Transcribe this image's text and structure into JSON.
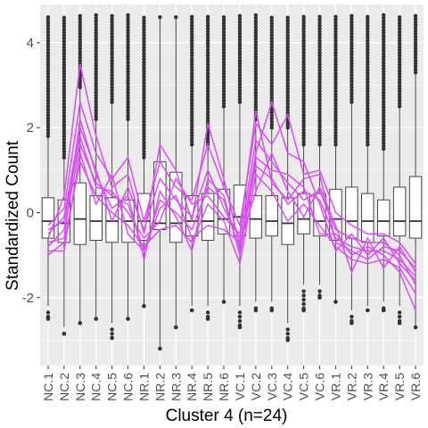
{
  "chart_data": {
    "type": "boxplot-with-lines",
    "xlabel": "Cluster 4 (n=24)",
    "ylabel": "Standardized Count",
    "ylim": [
      -3.6,
      4.9
    ],
    "yticks": [
      -2,
      0,
      2,
      4
    ],
    "grid": true,
    "colors": {
      "panel": "#ebebeb",
      "grid_major": "#ffffff",
      "box_outline": "#333333",
      "outlier": "#333333",
      "lines": "#d84ef0"
    },
    "categories": [
      "NC.1",
      "NC.2",
      "NC.3",
      "NC.4",
      "NC.5",
      "NC.6",
      "NR.1",
      "NR.2",
      "NR.3",
      "NR.4",
      "NR.5",
      "NR.6",
      "VC.1",
      "VC.2",
      "VC.3",
      "VC.4",
      "VC.5",
      "VC.6",
      "VR.1",
      "VR.2",
      "VR.3",
      "VR.4",
      "VR.5",
      "VR.6"
    ],
    "boxes": [
      {
        "q1": -0.6,
        "median": -0.2,
        "q3": 0.35,
        "whisker_low": -2.2,
        "whisker_high": 1.8,
        "outlier_top": 4.65,
        "outlier_low": -2.5
      },
      {
        "q1": -0.7,
        "median": -0.25,
        "q3": 0.3,
        "whisker_low": -2.7,
        "whisker_high": 1.3,
        "outlier_top": 4.65,
        "outlier_low": -2.85
      },
      {
        "q1": -0.75,
        "median": -0.15,
        "q3": 0.7,
        "whisker_low": -2.6,
        "whisker_high": 2.95,
        "outlier_top": 4.65,
        "outlier_low": -2.6
      },
      {
        "q1": -0.65,
        "median": -0.2,
        "q3": 0.4,
        "whisker_low": -2.45,
        "whisker_high": 2.2,
        "outlier_top": 4.65,
        "outlier_low": -2.5
      },
      {
        "q1": -0.7,
        "median": -0.2,
        "q3": 0.35,
        "whisker_low": -2.6,
        "whisker_high": 2.6,
        "outlier_top": 4.65,
        "outlier_low": -2.95
      },
      {
        "q1": -0.7,
        "median": -0.2,
        "q3": 0.3,
        "whisker_low": -2.45,
        "whisker_high": 2.2,
        "outlier_top": 4.65,
        "outlier_low": -2.5
      },
      {
        "q1": -0.65,
        "median": -0.2,
        "q3": 0.45,
        "whisker_low": -2.2,
        "whisker_high": 1.3,
        "outlier_top": 4.65,
        "outlier_low": -2.2
      },
      {
        "q1": -0.4,
        "median": -0.25,
        "q3": 1.2,
        "whisker_low": -3.2,
        "whisker_high": 4.6,
        "outlier_top": 4.65,
        "outlier_low": -3.2
      },
      {
        "q1": -0.7,
        "median": -0.25,
        "q3": 0.95,
        "whisker_low": -2.7,
        "whisker_high": 4.6,
        "outlier_top": 4.65,
        "outlier_low": -2.7
      },
      {
        "q1": -0.55,
        "median": -0.2,
        "q3": 0.4,
        "whisker_low": -2.2,
        "whisker_high": 1.6,
        "outlier_top": 4.65,
        "outlier_low": -2.3
      },
      {
        "q1": -0.65,
        "median": -0.2,
        "q3": 0.45,
        "whisker_low": -2.2,
        "whisker_high": 1.6,
        "outlier_top": 4.65,
        "outlier_low": -2.5
      },
      {
        "q1": -0.5,
        "median": -0.15,
        "q3": 0.55,
        "whisker_low": -2.1,
        "whisker_high": 2.5,
        "outlier_top": 4.65,
        "outlier_low": -2.1
      },
      {
        "q1": -0.55,
        "median": -0.1,
        "q3": 0.65,
        "whisker_low": -2.2,
        "whisker_high": 2.6,
        "outlier_top": 4.65,
        "outlier_low": -2.7
      },
      {
        "q1": -0.6,
        "median": -0.15,
        "q3": 0.4,
        "whisker_low": -2.1,
        "whisker_high": 2.2,
        "outlier_top": 4.65,
        "outlier_low": -2.3
      },
      {
        "q1": -0.55,
        "median": -0.2,
        "q3": 0.4,
        "whisker_low": -2.1,
        "whisker_high": 2.0,
        "outlier_top": 4.65,
        "outlier_low": -2.3
      },
      {
        "q1": -0.75,
        "median": -0.25,
        "q3": 0.35,
        "whisker_low": -2.6,
        "whisker_high": 2.0,
        "outlier_top": 4.65,
        "outlier_low": -3.0
      },
      {
        "q1": -0.5,
        "median": -0.15,
        "q3": 0.45,
        "whisker_low": -1.7,
        "whisker_high": 1.6,
        "outlier_top": 4.65,
        "outlier_low": -2.3
      },
      {
        "q1": -0.55,
        "median": -0.2,
        "q3": 0.45,
        "whisker_low": -1.7,
        "whisker_high": 1.6,
        "outlier_top": 4.65,
        "outlier_low": -2.0
      },
      {
        "q1": -0.65,
        "median": -0.15,
        "q3": 0.55,
        "whisker_low": -2.1,
        "whisker_high": 1.6,
        "outlier_top": 4.65,
        "outlier_low": -2.1
      },
      {
        "q1": -0.6,
        "median": -0.2,
        "q3": 0.6,
        "whisker_low": -2.3,
        "whisker_high": 2.6,
        "outlier_top": 4.65,
        "outlier_low": -2.6
      },
      {
        "q1": -0.7,
        "median": -0.2,
        "q3": 0.45,
        "whisker_low": -2.2,
        "whisker_high": 1.6,
        "outlier_top": 4.65,
        "outlier_low": -2.3
      },
      {
        "q1": -0.55,
        "median": -0.2,
        "q3": 0.3,
        "whisker_low": -2.1,
        "whisker_high": 1.5,
        "outlier_top": 4.65,
        "outlier_low": -2.3
      },
      {
        "q1": -0.55,
        "median": -0.2,
        "q3": 0.6,
        "whisker_low": -2.2,
        "whisker_high": 2.5,
        "outlier_top": 4.65,
        "outlier_low": -2.6
      },
      {
        "q1": -0.6,
        "median": -0.2,
        "q3": 0.85,
        "whisker_low": -2.7,
        "whisker_high": 3.3,
        "outlier_top": 4.65,
        "outlier_low": -2.7
      }
    ],
    "lines": [
      [
        -0.8,
        -0.4,
        1.6,
        0.7,
        0.4,
        0.2,
        -0.9,
        0.3,
        0.0,
        -0.4,
        0.6,
        0.3,
        -0.9,
        1.1,
        0.8,
        0.2,
        0.5,
        0.3,
        -0.6,
        -0.8,
        -0.9,
        -0.9,
        -1.1,
        -1.5
      ],
      [
        -0.5,
        -0.1,
        2.0,
        1.0,
        -0.2,
        0.6,
        -0.4,
        0.8,
        0.3,
        -0.1,
        1.0,
        0.1,
        -0.6,
        1.7,
        1.2,
        0.7,
        0.3,
        0.5,
        -0.4,
        -0.6,
        -0.7,
        -0.7,
        -1.0,
        -1.7
      ],
      [
        -1.0,
        -0.7,
        1.2,
        0.4,
        0.0,
        -0.3,
        -0.8,
        -0.4,
        -0.3,
        -0.7,
        0.2,
        -0.2,
        -1.2,
        0.9,
        0.5,
        -0.2,
        0.2,
        -0.3,
        -0.8,
        -1.1,
        -1.2,
        -1.1,
        -1.3,
        -1.9
      ],
      [
        -0.3,
        0.1,
        2.6,
        1.4,
        0.8,
        1.3,
        -0.2,
        1.2,
        0.6,
        0.3,
        1.6,
        0.6,
        -0.3,
        2.1,
        1.6,
        2.3,
        0.9,
        1.0,
        0.0,
        -0.3,
        -0.5,
        -0.5,
        -0.7,
        -1.2
      ],
      [
        -0.9,
        -0.9,
        1.4,
        0.2,
        0.9,
        -0.5,
        -0.9,
        0.1,
        0.4,
        -0.6,
        -0.3,
        -0.4,
        -0.7,
        0.5,
        1.4,
        0.5,
        -0.1,
        0.6,
        -0.3,
        -1.4,
        -0.6,
        -1.3,
        -0.8,
        -1.4
      ],
      [
        -0.6,
        0.4,
        3.5,
        1.8,
        0.6,
        0.9,
        -0.5,
        1.6,
        1.0,
        -0.2,
        2.1,
        0.8,
        -0.8,
        1.4,
        2.6,
        1.4,
        1.2,
        0.2,
        -0.9,
        -0.5,
        -1.0,
        -0.6,
        -1.2,
        -1.6
      ],
      [
        -0.7,
        -0.6,
        2.2,
        0.9,
        0.1,
        0.4,
        -1.1,
        0.5,
        -0.1,
        -0.9,
        0.8,
        0.4,
        -1.0,
        1.3,
        1.0,
        0.9,
        0.6,
        -0.5,
        -0.5,
        -1.0,
        -0.8,
        -1.0,
        -1.4,
        -2.3
      ],
      [
        -0.4,
        -0.2,
        1.8,
        0.6,
        0.5,
        0.0,
        -0.6,
        -0.2,
        0.8,
        0.2,
        0.4,
        -0.1,
        -0.5,
        2.4,
        0.7,
        0.3,
        0.8,
        0.9,
        -0.7,
        -0.9,
        -1.1,
        -0.8,
        -0.9,
        -1.3
      ]
    ]
  }
}
